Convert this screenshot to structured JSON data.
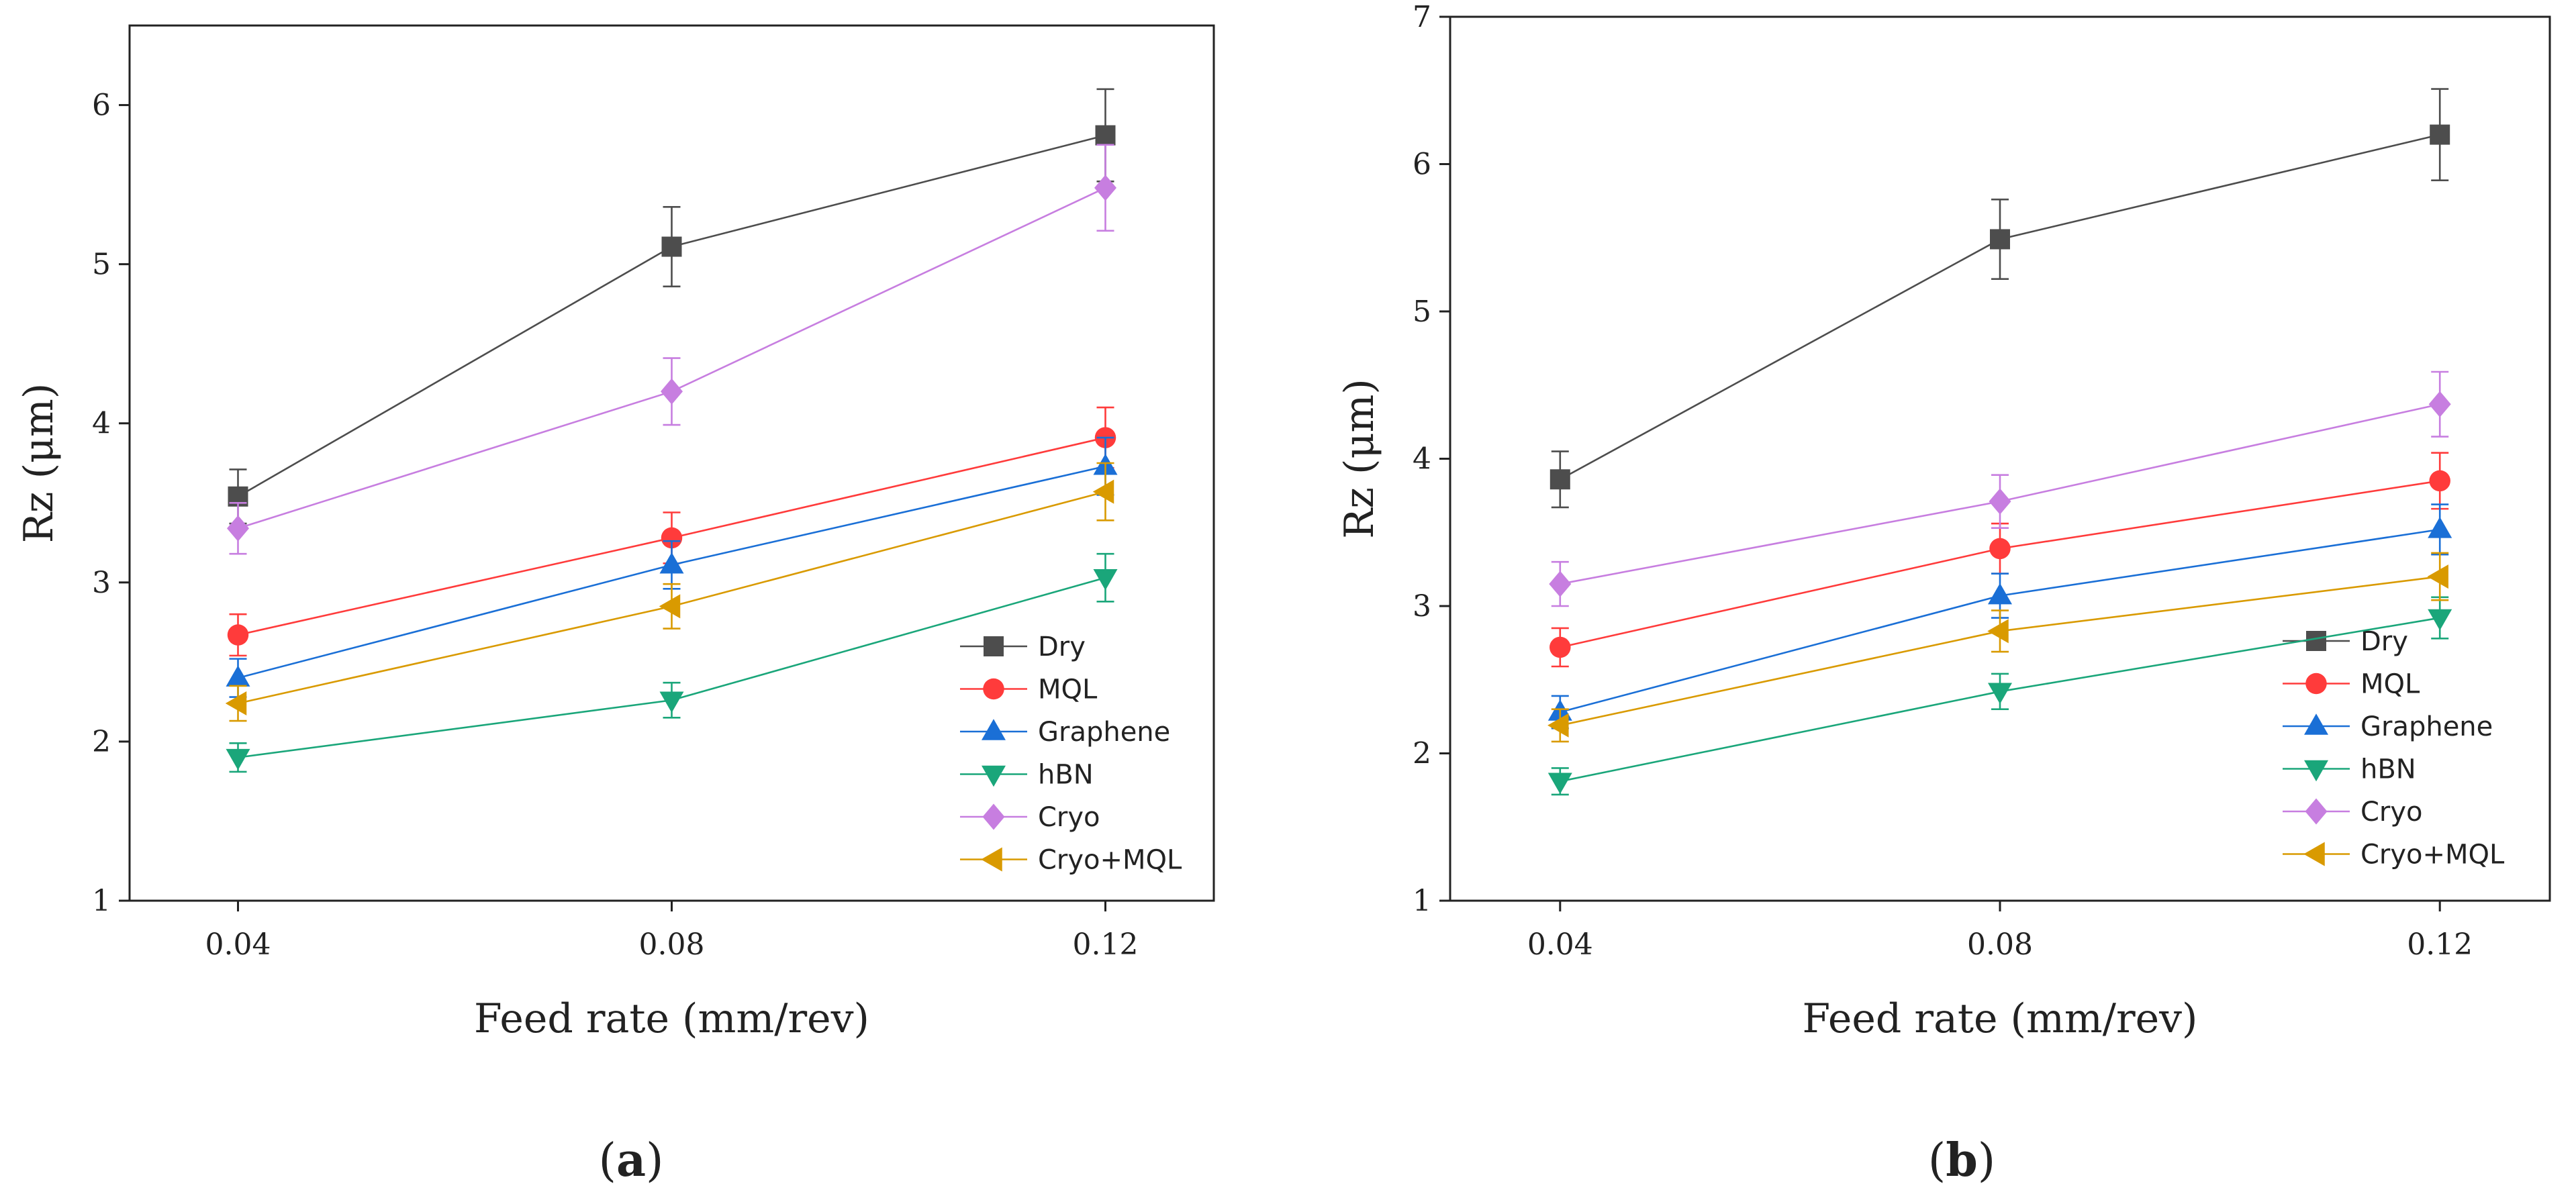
{
  "figure": {
    "panel_labels": [
      {
        "open": "(",
        "letter": "a",
        "close": ")"
      },
      {
        "open": "(",
        "letter": "b",
        "close": ")"
      }
    ]
  },
  "chart_data": [
    {
      "type": "line",
      "panel": "a",
      "xlabel": "Feed rate (mm/rev)",
      "ylabel": "Rz (μm)",
      "categories": [
        "0.04",
        "0.08",
        "0.12"
      ],
      "x": [
        0.04,
        0.08,
        0.12
      ],
      "xlim": [
        0.03,
        0.13
      ],
      "ylim": [
        1,
        6.5
      ],
      "yticks": [
        1,
        2,
        3,
        4,
        5,
        6
      ],
      "grid": false,
      "legend_position": "bottom-right",
      "series": [
        {
          "name": "Dry",
          "marker": "square",
          "color": "#4d4d4d",
          "values": [
            3.54,
            5.11,
            5.81
          ],
          "errors": [
            0.17,
            0.25,
            0.29
          ]
        },
        {
          "name": "MQL",
          "marker": "circle",
          "color": "#ff3b3b",
          "values": [
            2.67,
            3.28,
            3.91
          ],
          "errors": [
            0.13,
            0.16,
            0.19
          ]
        },
        {
          "name": "Graphene",
          "marker": "triangle-up",
          "color": "#1a6fd6",
          "values": [
            2.4,
            3.11,
            3.73
          ],
          "errors": [
            0.12,
            0.15,
            0.18
          ]
        },
        {
          "name": "hBN",
          "marker": "triangle-down",
          "color": "#1aa67a",
          "values": [
            1.9,
            2.26,
            3.03
          ],
          "errors": [
            0.09,
            0.11,
            0.15
          ]
        },
        {
          "name": "Cryo",
          "marker": "diamond",
          "color": "#c77ee0",
          "values": [
            3.34,
            4.2,
            5.48
          ],
          "errors": [
            0.16,
            0.21,
            0.27
          ]
        },
        {
          "name": "Cryo+MQL",
          "marker": "triangle-left",
          "color": "#d99a00",
          "values": [
            2.24,
            2.85,
            3.57
          ],
          "errors": [
            0.11,
            0.14,
            0.18
          ]
        }
      ]
    },
    {
      "type": "line",
      "panel": "b",
      "xlabel": "Feed rate (mm/rev)",
      "ylabel": "Rz (μm)",
      "categories": [
        "0.04",
        "0.08",
        "0.12"
      ],
      "x": [
        0.04,
        0.08,
        0.12
      ],
      "xlim": [
        0.03,
        0.13
      ],
      "ylim": [
        1,
        7
      ],
      "yticks": [
        1,
        2,
        3,
        4,
        5,
        6,
        7
      ],
      "grid": false,
      "legend_position": "bottom-right",
      "series": [
        {
          "name": "Dry",
          "marker": "square",
          "color": "#4d4d4d",
          "values": [
            3.86,
            5.49,
            6.2
          ],
          "errors": [
            0.19,
            0.27,
            0.31
          ]
        },
        {
          "name": "MQL",
          "marker": "circle",
          "color": "#ff3b3b",
          "values": [
            2.72,
            3.39,
            3.85
          ],
          "errors": [
            0.13,
            0.17,
            0.19
          ]
        },
        {
          "name": "Graphene",
          "marker": "triangle-up",
          "color": "#1a6fd6",
          "values": [
            2.28,
            3.07,
            3.52
          ],
          "errors": [
            0.11,
            0.15,
            0.17
          ]
        },
        {
          "name": "hBN",
          "marker": "triangle-down",
          "color": "#1aa67a",
          "values": [
            1.81,
            2.42,
            2.92
          ],
          "errors": [
            0.09,
            0.12,
            0.14
          ]
        },
        {
          "name": "Cryo",
          "marker": "diamond",
          "color": "#c77ee0",
          "values": [
            3.15,
            3.71,
            4.37
          ],
          "errors": [
            0.15,
            0.18,
            0.22
          ]
        },
        {
          "name": "Cryo+MQL",
          "marker": "triangle-left",
          "color": "#d99a00",
          "values": [
            2.19,
            2.83,
            3.2
          ],
          "errors": [
            0.11,
            0.14,
            0.16
          ]
        }
      ]
    }
  ]
}
